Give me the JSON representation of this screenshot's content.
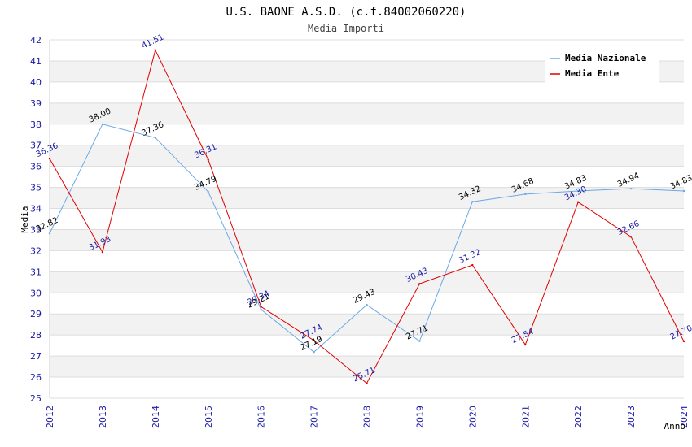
{
  "chart_data": {
    "type": "line",
    "title": "U.S. BAONE A.S.D. (c.f.84002060220)",
    "subtitle": "Media Importi",
    "xlabel": "Anno",
    "ylabel": "Media",
    "ylim": [
      25,
      42
    ],
    "yticks": [
      "25",
      "26",
      "27",
      "28",
      "29",
      "30",
      "31",
      "32",
      "33",
      "34",
      "35",
      "36",
      "37",
      "38",
      "39",
      "40",
      "41",
      "42"
    ],
    "categories": [
      "2012",
      "2013",
      "2014",
      "2015",
      "2016",
      "2017",
      "2018",
      "2019",
      "2020",
      "2021",
      "2022",
      "2023",
      "2024"
    ],
    "series": [
      {
        "name": "Media Nazionale",
        "color": "#6aa8e6",
        "label_color": "#000000",
        "values": [
          32.82,
          38.0,
          37.36,
          34.79,
          29.21,
          27.19,
          29.43,
          27.71,
          34.32,
          34.68,
          34.83,
          34.94,
          34.83
        ],
        "labels": [
          "32.82",
          "38.00",
          "37.36",
          "34.79",
          "29.21",
          "27.19",
          "29.43",
          "27.71",
          "34.32",
          "34.68",
          "34.83",
          "34.94",
          "34.83"
        ]
      },
      {
        "name": "Media Ente",
        "color": "#e00000",
        "label_color": "#1a1aa6",
        "values": [
          36.36,
          31.93,
          41.51,
          36.31,
          29.34,
          27.74,
          25.71,
          30.43,
          31.32,
          27.54,
          34.3,
          32.66,
          27.7
        ],
        "labels": [
          "36.36",
          "31.93",
          "41.51",
          "36.31",
          "29.34",
          "27.74",
          "25.71",
          "30.43",
          "31.32",
          "27.54",
          "34.30",
          "32.66",
          "27.70"
        ]
      }
    ],
    "legend_position": "top-right",
    "grid": true
  }
}
